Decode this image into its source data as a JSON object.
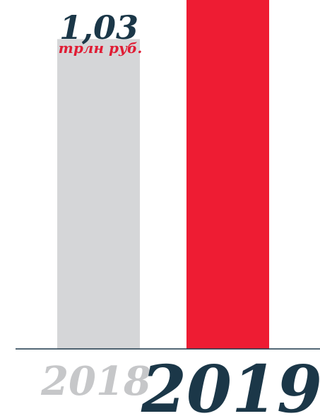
{
  "chart_data": {
    "type": "bar",
    "categories": [
      "2018",
      "2019"
    ],
    "values": [
      1.03,
      1.16
    ],
    "value_labels": [
      "1,03",
      ""
    ],
    "unit_label": "трлн руб.",
    "title": "",
    "xlabel": "",
    "ylabel": "",
    "ylim": [
      0,
      1.16
    ],
    "grid": false,
    "legend": "none"
  },
  "colors": {
    "bar_2018": "#d5d6d8",
    "bar_2019": "#ee1c33",
    "year_2018": "#c6c7c9",
    "year_2019": "#1b3748",
    "value_text": "#1b3748",
    "unit_text": "#e01c34",
    "axis": "#1b3748"
  }
}
